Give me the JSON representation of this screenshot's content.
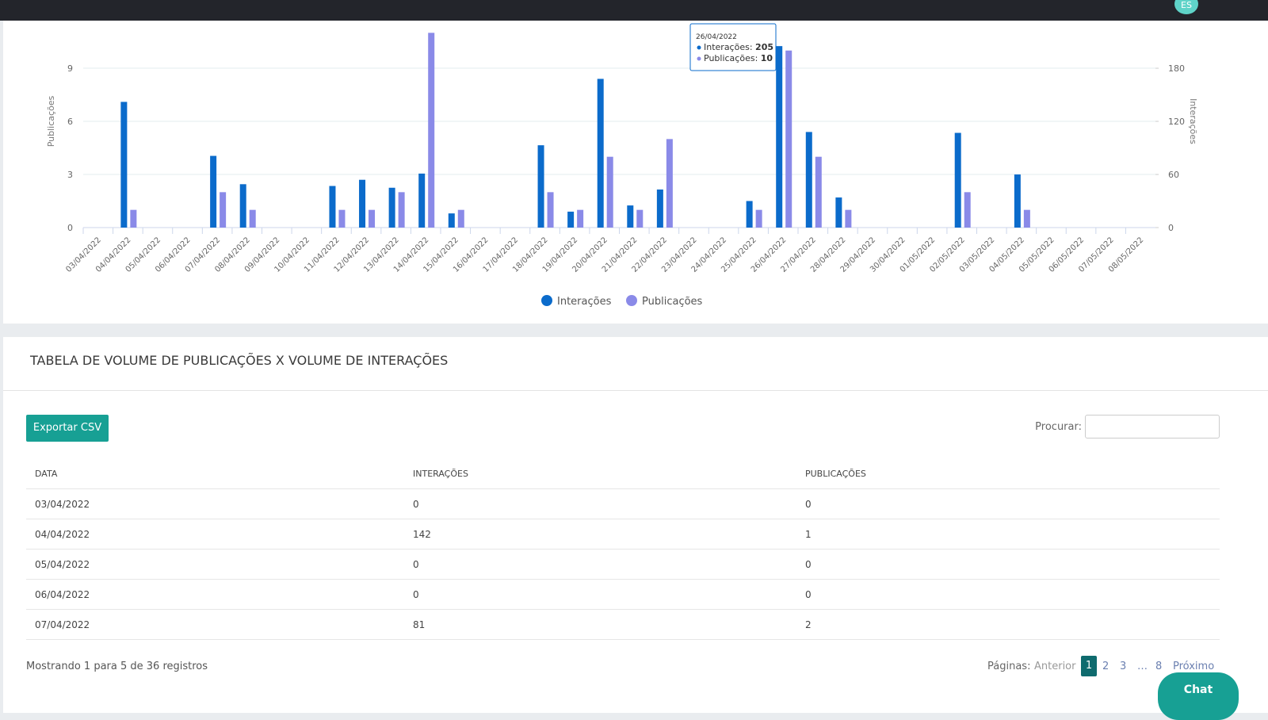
{
  "topbar": {
    "avatar": "ES"
  },
  "chart_data": {
    "type": "bar",
    "categories": [
      "03/04/2022",
      "04/04/2022",
      "05/04/2022",
      "06/04/2022",
      "07/04/2022",
      "08/04/2022",
      "09/04/2022",
      "10/04/2022",
      "11/04/2022",
      "12/04/2022",
      "13/04/2022",
      "14/04/2022",
      "15/04/2022",
      "16/04/2022",
      "17/04/2022",
      "18/04/2022",
      "19/04/2022",
      "20/04/2022",
      "21/04/2022",
      "22/04/2022",
      "23/04/2022",
      "24/04/2022",
      "25/04/2022",
      "26/04/2022",
      "27/04/2022",
      "28/04/2022",
      "29/04/2022",
      "30/04/2022",
      "01/05/2022",
      "02/05/2022",
      "03/05/2022",
      "04/05/2022",
      "05/05/2022",
      "06/05/2022",
      "07/05/2022",
      "08/05/2022"
    ],
    "series": [
      {
        "name": "Interações",
        "color": "#0b6bcb",
        "axis": "y2",
        "values": [
          0,
          142,
          0,
          0,
          81,
          49,
          0,
          0,
          47,
          54,
          45,
          61,
          16,
          0,
          0,
          93,
          18,
          168,
          25,
          43,
          0,
          0,
          30,
          205,
          108,
          34,
          0,
          0,
          0,
          107,
          0,
          60,
          0,
          0,
          0,
          0
        ]
      },
      {
        "name": "Publicações",
        "color": "#8a8ae8",
        "values": [
          0,
          1,
          0,
          0,
          2,
          1,
          0,
          0,
          1,
          1,
          2,
          11,
          1,
          0,
          0,
          2,
          1,
          4,
          1,
          5,
          0,
          0,
          1,
          10,
          4,
          1,
          0,
          0,
          0,
          2,
          0,
          1,
          0,
          0,
          0,
          0
        ]
      }
    ],
    "ylabel": "Publicações",
    "y2label": "Interações",
    "ylim": [
      0,
      11
    ],
    "yticks": [
      0,
      3,
      6,
      9
    ],
    "y2lim": [
      0,
      220
    ],
    "y2ticks": [
      0,
      60,
      120,
      180
    ],
    "grid": true,
    "legend": "bottom"
  },
  "table": {
    "title": "TABELA DE VOLUME DE PUBLICAÇÕES X VOLUME DE INTERAÇÕES",
    "export": "Exportar CSV",
    "search_label": "Procurar:",
    "columns": [
      "DATA",
      "INTERAÇÕES",
      "PUBLICAÇÕES"
    ],
    "rows": [
      [
        "03/04/2022",
        0,
        0
      ],
      [
        "04/04/2022",
        142,
        1
      ],
      [
        "05/04/2022",
        0,
        0
      ],
      [
        "06/04/2022",
        0,
        0
      ],
      [
        "07/04/2022",
        81,
        2
      ]
    ],
    "info": "Mostrando 1 para 5 de 36 registros",
    "pagination": {
      "label": "Páginas:",
      "prev": "Anterior",
      "pages": [
        "1",
        "2",
        "3",
        "…",
        "8"
      ],
      "next": "Próximo"
    }
  },
  "chat": "Chat"
}
